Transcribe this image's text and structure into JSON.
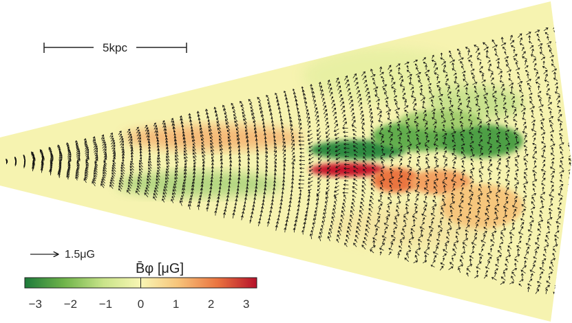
{
  "scale_bar": {
    "label": "5kpc"
  },
  "vector_key": {
    "label": "1.5μG"
  },
  "colorbar": {
    "title": "B̄φ [μG]",
    "ticks": [
      "−3",
      "−2",
      "−1",
      "0",
      "1",
      "2",
      "3"
    ],
    "range": [
      -3.3,
      3.3
    ],
    "colors": [
      "#1d7a3a",
      "#6fb44a",
      "#c9e48a",
      "#f8f6b4",
      "#f7c47a",
      "#ea7440",
      "#b6112a"
    ]
  },
  "field": {
    "background_color": "#f6f3b0",
    "arrow_color": "#111111"
  }
}
